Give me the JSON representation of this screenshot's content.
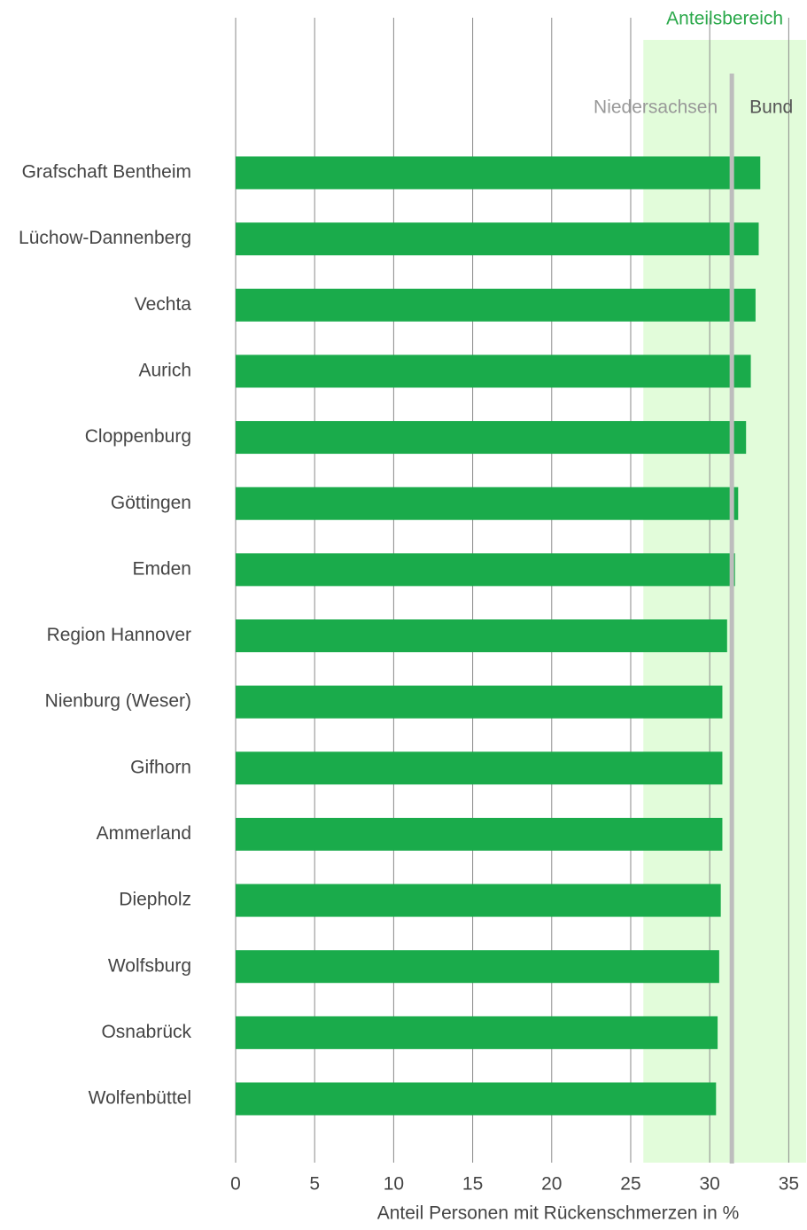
{
  "chart_data": {
    "type": "barh",
    "x_label": "Anteil Personen mit Rückenschmerzen in %",
    "categories": [
      "Grafschaft Bentheim",
      "Lüchow-Dannenberg",
      "Vechta",
      "Aurich",
      "Cloppenburg",
      "Göttingen",
      "Emden",
      "Region Hannover",
      "Nienburg (Weser)",
      "Gifhorn",
      "Ammerland",
      "Diepholz",
      "Wolfsburg",
      "Osnabrück",
      "Wolfenbüttel"
    ],
    "values": [
      33.2,
      33.1,
      32.9,
      32.6,
      32.3,
      31.8,
      31.6,
      31.1,
      30.8,
      30.8,
      30.8,
      30.7,
      30.6,
      30.5,
      30.4
    ],
    "color": "#1aab4b",
    "xlim": [
      0,
      36.1
    ],
    "xticks": [
      0,
      5,
      10,
      15,
      20,
      25,
      30,
      35
    ],
    "grid": true,
    "range": {
      "label": "Anteilsbereich",
      "from": 25.8,
      "to": 36.1,
      "color": "#e2fcda"
    },
    "reference_line": {
      "value": 31.4,
      "label_left": "Niedersachsen",
      "label_right": "Bund",
      "color": "#bdbdbd"
    }
  }
}
